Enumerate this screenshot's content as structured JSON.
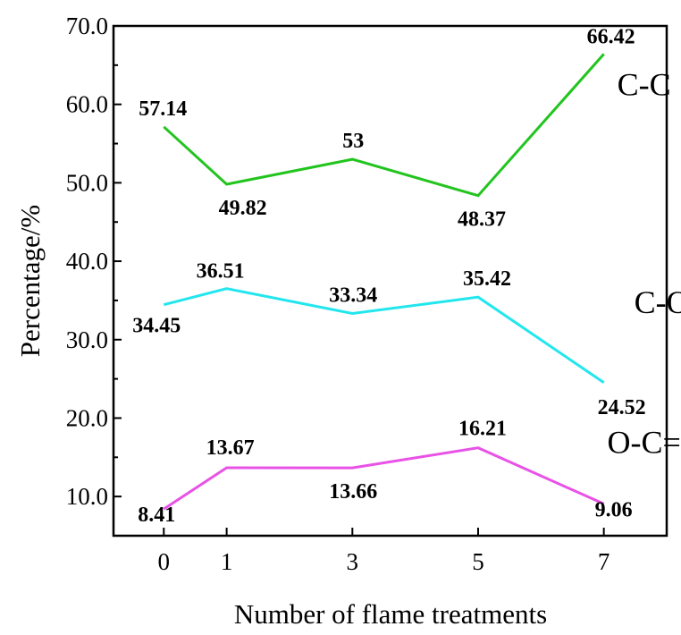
{
  "chart_data": {
    "type": "line",
    "xlabel": "Number of flame treatments",
    "ylabel": "Percentage/%",
    "x": [
      0,
      1,
      3,
      5,
      7
    ],
    "x_tick_labels": [
      "0",
      "1",
      "3",
      "5",
      "7"
    ],
    "xlim": [
      -0.8,
      8.0
    ],
    "ylim": [
      5,
      70
    ],
    "y_ticks": [
      10,
      20,
      30,
      40,
      50,
      60,
      70
    ],
    "y_tick_labels": [
      "10.0",
      "20.0",
      "30.0",
      "40.0",
      "50.0",
      "60.0",
      "70.0"
    ],
    "grid": false,
    "series": [
      {
        "name": "C-C",
        "color": "#22c41e",
        "values": [
          57.14,
          49.82,
          53,
          48.37,
          66.42
        ],
        "labels": [
          "57.14",
          "49.82",
          "53",
          "48.37",
          "66.42"
        ]
      },
      {
        "name": "C-O",
        "color": "#22e6ee",
        "values": [
          34.45,
          36.51,
          33.34,
          35.42,
          24.52
        ],
        "labels": [
          "34.45",
          "36.51",
          "33.34",
          "35.42",
          "24.52"
        ]
      },
      {
        "name": "O-C=O",
        "color": "#e852e6",
        "values": [
          8.41,
          13.67,
          13.66,
          16.21,
          9.06
        ],
        "labels": [
          "8.41",
          "13.67",
          "13.66",
          "16.21",
          "9.06"
        ]
      }
    ]
  }
}
